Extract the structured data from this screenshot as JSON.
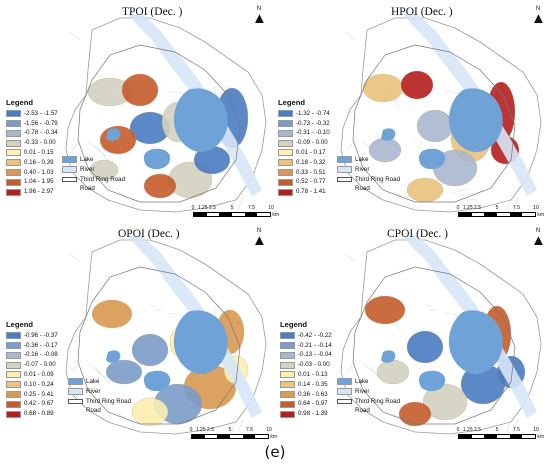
{
  "panels": [
    {
      "title": "TPOI (Dec. )",
      "legend_title": "Legend",
      "classes": [
        {
          "label": "-2.53 - -1.57",
          "color": "#4a7cc0"
        },
        {
          "label": "-1.56 - -0.79",
          "color": "#7b9cc8"
        },
        {
          "label": "-0.78 - -0.34",
          "color": "#a9b8cf"
        },
        {
          "label": "-0.33 - 0.00",
          "color": "#d3d2c0"
        },
        {
          "label": "0.01 - 0.15",
          "color": "#fbf0b0"
        },
        {
          "label": "0.16 - 0.39",
          "color": "#ebc27e"
        },
        {
          "label": "0.40 - 1.03",
          "color": "#d9994f"
        },
        {
          "label": "1.04 - 1.95",
          "color": "#c55b2c"
        },
        {
          "label": "1.96 - 2.97",
          "color": "#b51f1f"
        }
      ],
      "lake_label": "Lake",
      "river_label": "River",
      "road_label_1": "Third Ring Road",
      "road_label_2": "Road",
      "north_label": "N",
      "scale_ticks": [
        "0",
        "1.25",
        "2.5",
        "5",
        "7.5",
        "10"
      ],
      "scale_unit": "km"
    },
    {
      "title": "HPOI (Dec. )",
      "legend_title": "Legend",
      "classes": [
        {
          "label": "-1.32 - -0.74",
          "color": "#4a7cc0"
        },
        {
          "label": "-0.73 - -0.32",
          "color": "#7b9cc8"
        },
        {
          "label": "-0.31 - -0.10",
          "color": "#a9b8cf"
        },
        {
          "label": "-0.09 - 0.00",
          "color": "#d3d2c0"
        },
        {
          "label": "0.01 - 0.17",
          "color": "#fbf0b0"
        },
        {
          "label": "0.18 - 0.32",
          "color": "#ebc27e"
        },
        {
          "label": "0.33 - 0.51",
          "color": "#d9994f"
        },
        {
          "label": "0.52 - 0.77",
          "color": "#c55b2c"
        },
        {
          "label": "0.78 - 1.41",
          "color": "#b51f1f"
        }
      ],
      "lake_label": "Lake",
      "river_label": "River",
      "road_label_1": "Third Ring Road",
      "road_label_2": "Road",
      "north_label": "N",
      "scale_ticks": [
        "0",
        "1.25",
        "2.5",
        "5",
        "7.5",
        "10"
      ],
      "scale_unit": "km"
    },
    {
      "title": "OPOI (Dec. )",
      "legend_title": "Legend",
      "classes": [
        {
          "label": "-0.96 - -0.37",
          "color": "#4a7cc0"
        },
        {
          "label": "-0.36 - -0.17",
          "color": "#7b9cc8"
        },
        {
          "label": "-0.16 - -0.08",
          "color": "#a9b8cf"
        },
        {
          "label": "-0.07 - 0.00",
          "color": "#d3d2c0"
        },
        {
          "label": "0.01 - 0.09",
          "color": "#fbf0b0"
        },
        {
          "label": "0.10 - 0.24",
          "color": "#ebc27e"
        },
        {
          "label": "0.25 - 0.41",
          "color": "#d9994f"
        },
        {
          "label": "0.42 - 0.67",
          "color": "#c55b2c"
        },
        {
          "label": "0.68 - 0.89",
          "color": "#b51f1f"
        }
      ],
      "lake_label": "Lake",
      "river_label": "River",
      "road_label_1": "Third Ring Road",
      "road_label_2": "Road",
      "north_label": "N",
      "scale_ticks": [
        "0",
        "1.25",
        "2.5",
        "5",
        "7.5",
        "10"
      ],
      "scale_unit": "km"
    },
    {
      "title": "CPOI (Dec. )",
      "legend_title": "Legend",
      "classes": [
        {
          "label": "-0.42 - -0.22",
          "color": "#4a7cc0"
        },
        {
          "label": "-0.21 - -0.14",
          "color": "#7b9cc8"
        },
        {
          "label": "-0.13 - -0.04",
          "color": "#a9b8cf"
        },
        {
          "label": "-0.03 - 0.00",
          "color": "#d3d2c0"
        },
        {
          "label": "0.01 - 0.13",
          "color": "#fbf0b0"
        },
        {
          "label": "0.14 - 0.35",
          "color": "#ebc27e"
        },
        {
          "label": "0.36 - 0.63",
          "color": "#d9994f"
        },
        {
          "label": "0.64 - 0.97",
          "color": "#c55b2c"
        },
        {
          "label": "0.98 - 1.39",
          "color": "#b51f1f"
        }
      ],
      "lake_label": "Lake",
      "river_label": "River",
      "road_label_1": "Third Ring Road",
      "road_label_2": "Road",
      "north_label": "N",
      "scale_ticks": [
        "0",
        "1.25",
        "2.5",
        "5",
        "7.5",
        "10"
      ],
      "scale_unit": "km"
    }
  ],
  "colors": {
    "lake": "#6fa3d8",
    "river": "#d6e6f7",
    "road": "#dddddd",
    "outline": "#9a9a9a"
  },
  "caption": "(e)"
}
